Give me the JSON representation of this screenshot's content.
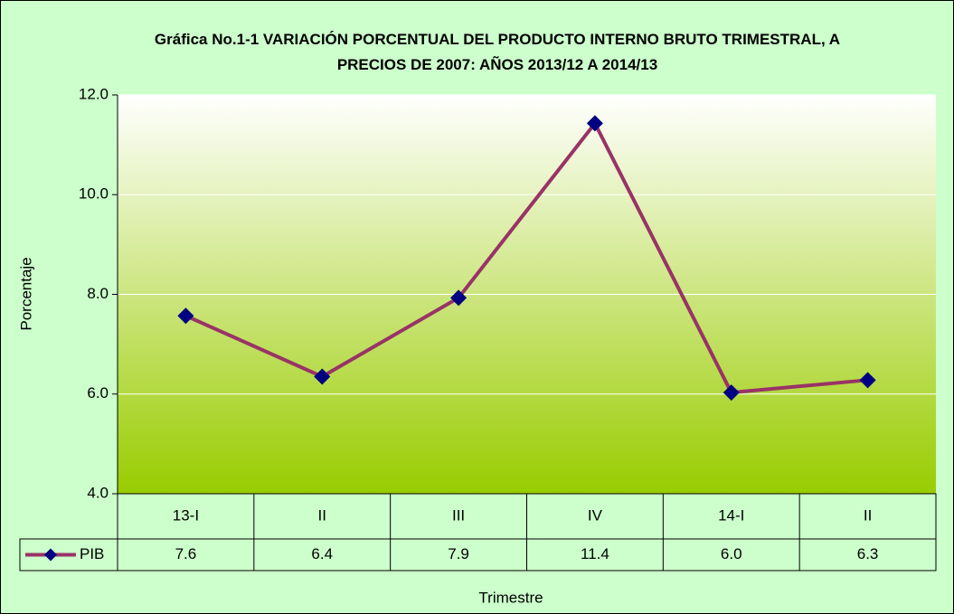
{
  "chart_data": {
    "type": "line",
    "title": "Gráfica No.1-1 VARIACIÓN PORCENTUAL DEL PRODUCTO INTERNO BRUTO TRIMESTRAL, A PRECIOS DE 2007:  AÑOS 2013/12 A 2014/13",
    "x_label": "Trimestre",
    "y_label": "Porcentaje",
    "categories": [
      "13-I",
      "II",
      "III",
      "IV",
      "14-I",
      "II"
    ],
    "series": [
      {
        "name": "PIB",
        "color": "#993366",
        "marker_color": "#000080",
        "values": [
          7.57,
          6.35,
          7.93,
          11.43,
          6.03,
          6.28
        ],
        "value_labels": [
          "7.6",
          "6.4",
          "7.9",
          "11.4",
          "6.0",
          "6.3"
        ]
      }
    ],
    "ylim": [
      4,
      12
    ],
    "yticks": [
      {
        "value": 4,
        "label": "4.0"
      },
      {
        "value": 6,
        "label": "6.0"
      },
      {
        "value": 8,
        "label": "8.0"
      },
      {
        "value": 10,
        "label": "10.0"
      },
      {
        "value": 12,
        "label": "12.0"
      }
    ],
    "grid": true
  }
}
